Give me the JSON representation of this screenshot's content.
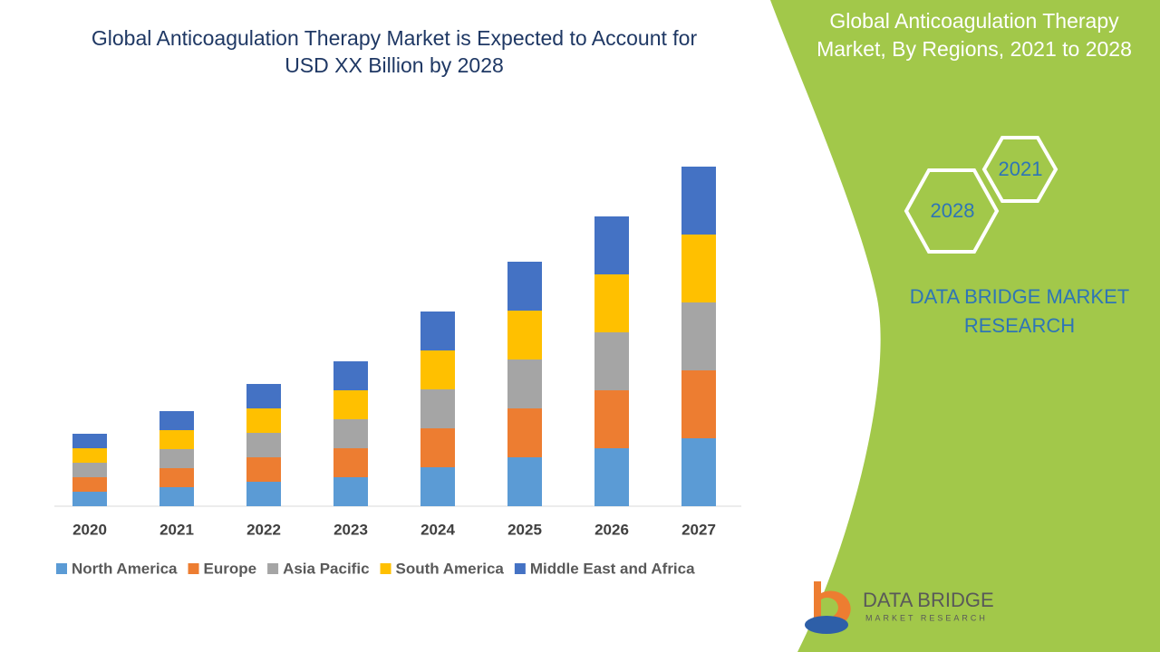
{
  "chart_data": {
    "type": "stacked_bar",
    "title": "Global Anticoagulation Therapy Market is Expected to Account for USD XX Billion by 2028",
    "categories": [
      "2020",
      "2021",
      "2022",
      "2023",
      "2024",
      "2025",
      "2026",
      "2027"
    ],
    "series": [
      {
        "name": "North America",
        "color": "#5b9bd5",
        "values": [
          1.6,
          2.1,
          2.7,
          3.2,
          4.3,
          5.4,
          6.4,
          7.5
        ]
      },
      {
        "name": "Europe",
        "color": "#ed7d31",
        "values": [
          1.6,
          2.1,
          2.7,
          3.2,
          4.3,
          5.4,
          6.4,
          7.5
        ]
      },
      {
        "name": "Asia Pacific",
        "color": "#a5a5a5",
        "values": [
          1.6,
          2.1,
          2.7,
          3.2,
          4.3,
          5.4,
          6.4,
          7.5
        ]
      },
      {
        "name": "South America",
        "color": "#ffc000",
        "values": [
          1.6,
          2.1,
          2.7,
          3.2,
          4.3,
          5.4,
          6.4,
          7.5
        ]
      },
      {
        "name": "Middle East and Africa",
        "color": "#4472c4",
        "values": [
          1.6,
          2.1,
          2.7,
          3.2,
          4.3,
          5.4,
          6.4,
          7.5
        ]
      }
    ],
    "legend": "bottom"
  },
  "panel": {
    "title": "Global Anticoagulation Therapy Market, By Regions, 2021 to 2028",
    "hexagons": [
      "2028",
      "2021"
    ],
    "brand": "DATA BRIDGE MARKET RESEARCH"
  },
  "logo": {
    "name": "DATA BRIDGE",
    "tagline": "MARKET RESEARCH"
  }
}
